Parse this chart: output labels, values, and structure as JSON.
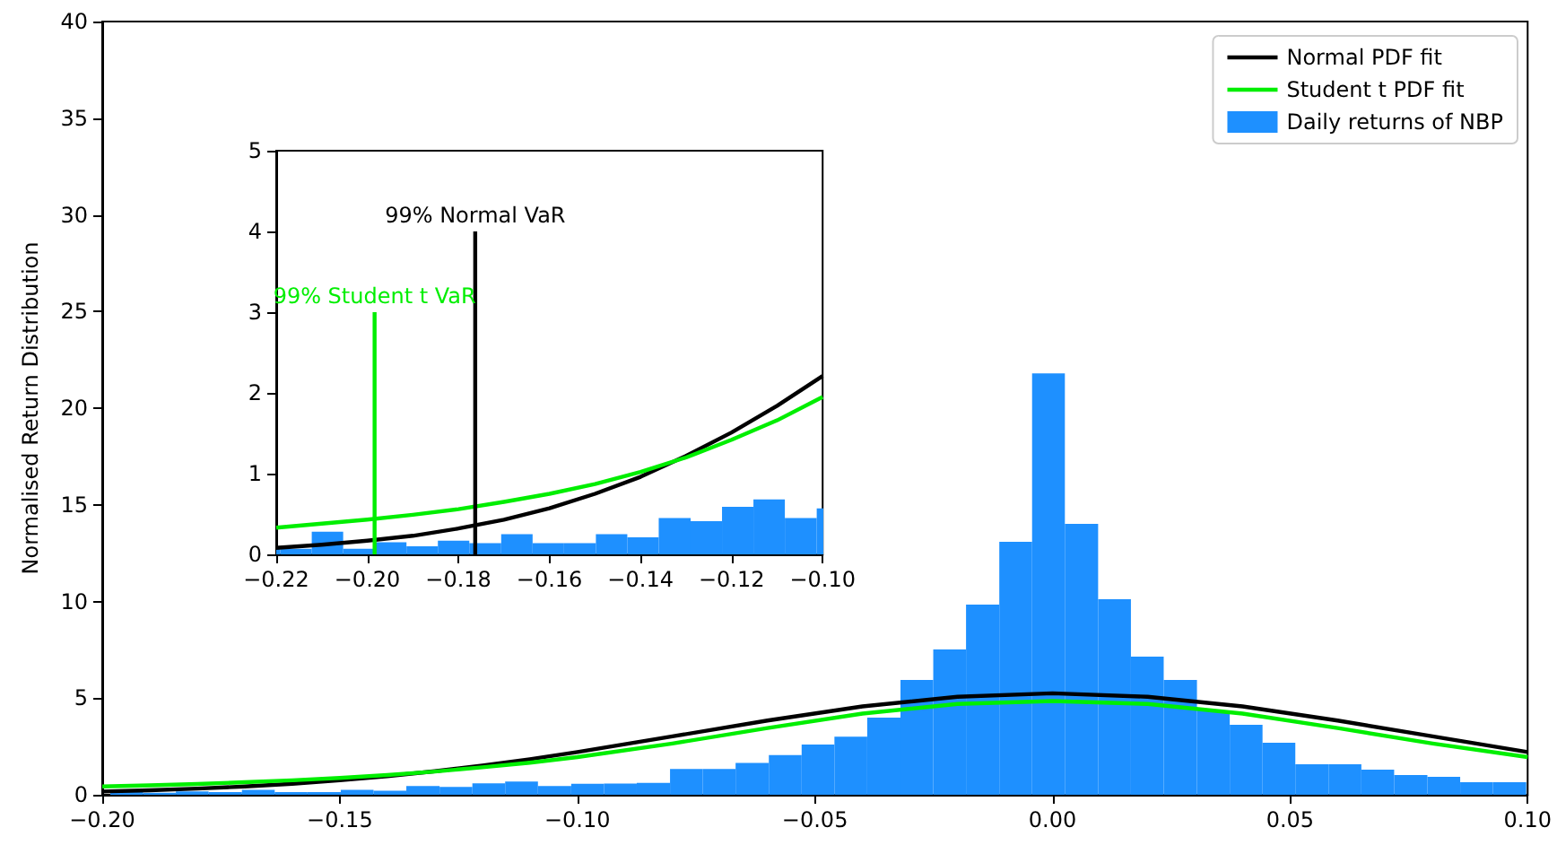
{
  "chart_data": [
    {
      "type": "histogram",
      "ylabel": "Normalised Return Distribution",
      "xlim": [
        -0.2,
        0.1
      ],
      "xticks": [
        {
          "value": -0.2,
          "label": "−0.20"
        },
        {
          "value": -0.15,
          "label": "−0.15"
        },
        {
          "value": -0.1,
          "label": "−0.10"
        },
        {
          "value": -0.05,
          "label": "−0.05"
        },
        {
          "value": 0,
          "label": "0.00"
        },
        {
          "value": 0.05,
          "label": "0.05"
        },
        {
          "value": 0.1,
          "label": "0.10"
        }
      ],
      "ylim": [
        0,
        40
      ],
      "yticks": [
        0,
        5,
        10,
        15,
        20,
        25,
        30,
        35,
        40
      ],
      "grid": false,
      "legend": "top right",
      "marker": "none",
      "series": [
        {
          "name": "Normal PDF fit",
          "type": "line",
          "color": "#000000",
          "x": [
            -0.2,
            -0.19,
            -0.18,
            -0.17,
            -0.16,
            -0.15,
            -0.14,
            -0.13,
            -0.12,
            -0.11,
            -0.1,
            -0.08,
            -0.06,
            -0.04,
            -0.02,
            0,
            0.02,
            0.04,
            0.06,
            0.08,
            0.1
          ],
          "values": [
            0.17,
            0.23,
            0.32,
            0.43,
            0.57,
            0.75,
            0.96,
            1.22,
            1.51,
            1.84,
            2.21,
            3.02,
            3.84,
            4.57,
            5.07,
            5.25,
            5.07,
            4.57,
            3.84,
            3.02,
            2.21
          ]
        },
        {
          "name": "Student t PDF fit",
          "type": "line",
          "color": "#00ee00",
          "x": [
            -0.2,
            -0.19,
            -0.18,
            -0.17,
            -0.16,
            -0.15,
            -0.14,
            -0.13,
            -0.12,
            -0.11,
            -0.1,
            -0.08,
            -0.06,
            -0.04,
            -0.02,
            0,
            0.02,
            0.04,
            0.06,
            0.08,
            0.1
          ],
          "values": [
            0.43,
            0.49,
            0.56,
            0.65,
            0.75,
            0.87,
            1.02,
            1.2,
            1.42,
            1.66,
            1.95,
            2.65,
            3.45,
            4.2,
            4.7,
            4.85,
            4.7,
            4.2,
            3.45,
            2.65,
            1.95
          ]
        },
        {
          "name": "Daily returns of NBP",
          "color": "#1e90ff",
          "bins": [
            -0.1983,
            -0.1914,
            -0.1845,
            -0.1776,
            -0.1706,
            -0.1637,
            -0.1568,
            -0.1498,
            -0.1429,
            -0.136,
            -0.129,
            -0.1221,
            -0.1152,
            -0.1083,
            -0.1013,
            -0.0944,
            -0.0875,
            -0.0805,
            -0.0736,
            -0.0667,
            -0.0597,
            -0.0528,
            -0.0459,
            -0.039,
            -0.032,
            -0.0251,
            -0.0182,
            -0.0112,
            -0.0043,
            0.0026,
            0.0096,
            0.0165,
            0.0234,
            0.0304,
            0.0373,
            0.0442,
            0.0511,
            0.0581,
            0.065,
            0.0719,
            0.0789,
            0.0858,
            0.0927,
            0.0997
          ],
          "values": [
            0.15,
            0.1,
            0.17,
            0.14,
            0.25,
            0.14,
            0.14,
            0.25,
            0.21,
            0.45,
            0.41,
            0.59,
            0.68,
            0.45,
            0.57,
            0.58,
            0.62,
            1.33,
            1.33,
            1.65,
            2.05,
            2.6,
            3.0,
            3.99,
            5.94,
            7.52,
            9.84,
            13.09,
            21.8,
            14.01,
            10.12,
            7.15,
            5.94,
            4.36,
            3.62,
            2.69,
            1.58,
            1.58,
            1.3,
            1.02,
            0.93,
            0.65,
            0.65
          ]
        }
      ]
    },
    {
      "type": "histogram",
      "xlim": [
        -0.22,
        -0.1
      ],
      "xticks": [
        {
          "value": -0.22,
          "label": "−0.22"
        },
        {
          "value": -0.2,
          "label": "−0.20"
        },
        {
          "value": -0.18,
          "label": "−0.18"
        },
        {
          "value": -0.16,
          "label": "−0.16"
        },
        {
          "value": -0.14,
          "label": "−0.14"
        },
        {
          "value": -0.12,
          "label": "−0.12"
        },
        {
          "value": -0.1,
          "label": "−0.10"
        }
      ],
      "ylim": [
        0,
        5
      ],
      "yticks": [
        0,
        1,
        2,
        3,
        4,
        5
      ],
      "grid": false,
      "marker": "none",
      "series": [
        {
          "type": "line",
          "color": "#000000",
          "x": [
            -0.22,
            -0.21,
            -0.2,
            -0.19,
            -0.18,
            -0.17,
            -0.16,
            -0.15,
            -0.14,
            -0.13,
            -0.12,
            -0.11,
            -0.1
          ],
          "values": [
            0.08,
            0.12,
            0.17,
            0.23,
            0.32,
            0.43,
            0.57,
            0.75,
            0.96,
            1.22,
            1.51,
            1.84,
            2.21
          ]
        },
        {
          "type": "line",
          "color": "#00ee00",
          "x": [
            -0.22,
            -0.21,
            -0.2,
            -0.19,
            -0.18,
            -0.17,
            -0.16,
            -0.15,
            -0.14,
            -0.13,
            -0.12,
            -0.11,
            -0.1
          ],
          "values": [
            0.33,
            0.38,
            0.43,
            0.49,
            0.56,
            0.65,
            0.75,
            0.87,
            1.02,
            1.2,
            1.42,
            1.66,
            1.95
          ]
        },
        {
          "color": "#1e90ff",
          "bins": [
            -0.2261,
            -0.2191,
            -0.2122,
            -0.2053,
            -0.1983,
            -0.1914,
            -0.1845,
            -0.1776,
            -0.1706,
            -0.1637,
            -0.1568,
            -0.1498,
            -0.1429,
            -0.136,
            -0.129,
            -0.1221,
            -0.1152,
            -0.1083,
            -0.1013,
            -0.0944
          ],
          "values": [
            0.07,
            0.07,
            0.28,
            0.07,
            0.15,
            0.1,
            0.17,
            0.14,
            0.25,
            0.14,
            0.14,
            0.25,
            0.21,
            0.45,
            0.41,
            0.59,
            0.68,
            0.45,
            0.57
          ]
        },
        {
          "name": "99% Student t VaR",
          "type": "line",
          "color": "#00ee00",
          "x": [
            -0.1984,
            -0.1984
          ],
          "values": [
            0,
            3
          ]
        },
        {
          "name": "99% Normal VaR",
          "type": "line",
          "color": "#000000",
          "x": [
            -0.1763,
            -0.1763
          ],
          "values": [
            0,
            4
          ]
        }
      ]
    }
  ]
}
